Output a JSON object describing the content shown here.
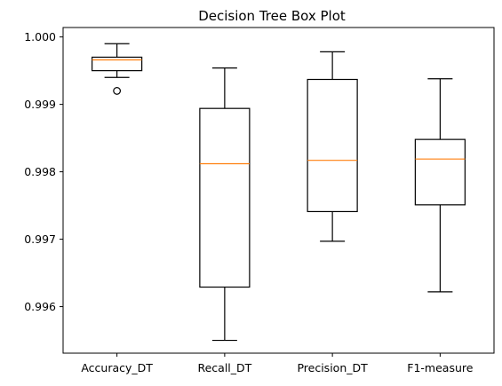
{
  "chart_data": {
    "type": "box",
    "title": "Decision Tree Box Plot",
    "xlabel": "",
    "ylabel": "",
    "categories": [
      "Accuracy_DT",
      "Recall_DT",
      "Precision_DT",
      "F1-measure"
    ],
    "boxes": [
      {
        "whisker_low": 0.9994,
        "q1": 0.9995,
        "median": 0.99966,
        "q3": 0.9997,
        "whisker_high": 0.9999,
        "outliers": [
          0.9992
        ]
      },
      {
        "whisker_low": 0.9955,
        "q1": 0.99629,
        "median": 0.99812,
        "q3": 0.99894,
        "whisker_high": 0.99954,
        "outliers": []
      },
      {
        "whisker_low": 0.99697,
        "q1": 0.99741,
        "median": 0.99817,
        "q3": 0.99937,
        "whisker_high": 0.99978,
        "outliers": []
      },
      {
        "whisker_low": 0.99622,
        "q1": 0.99751,
        "median": 0.99819,
        "q3": 0.99848,
        "whisker_high": 0.99938,
        "outliers": []
      }
    ],
    "ylim": [
      0.99531,
      1.00014
    ],
    "yticks": [
      0.996,
      0.997,
      0.998,
      0.999,
      1.0
    ],
    "ytick_labels": [
      "0.996",
      "0.997",
      "0.998",
      "0.999",
      "1.000"
    ],
    "grid": false,
    "colors": {
      "box": "#000000",
      "median": "#ff7f0e",
      "background": "#ffffff"
    }
  }
}
